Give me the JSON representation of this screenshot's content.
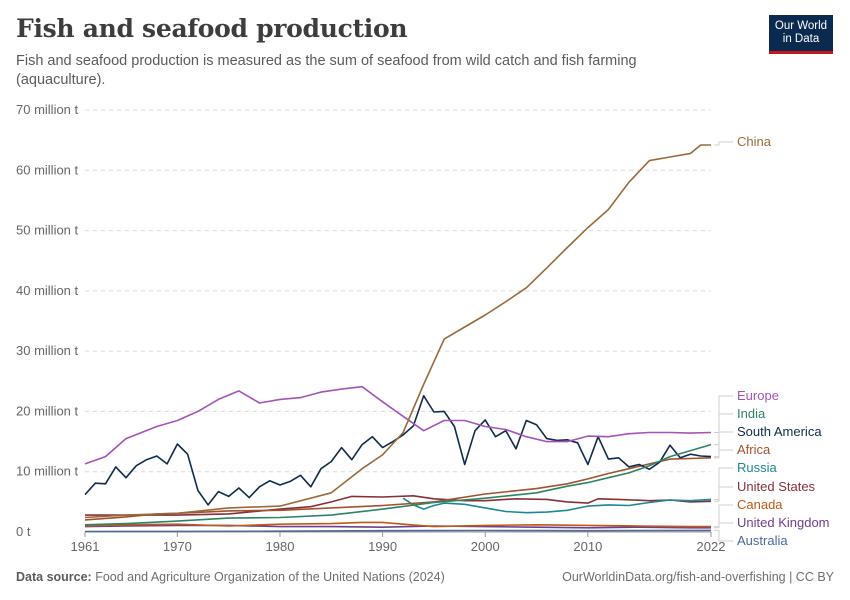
{
  "header": {
    "title": "Fish and seafood production",
    "subtitle": "Fish and seafood production is measured as the sum of seafood from wild catch and fish farming (aquaculture).",
    "logo_line1": "Our World",
    "logo_line2": "in Data"
  },
  "footer": {
    "source_label": "Data source:",
    "source_text": "Food and Agriculture Organization of the United Nations (2024)",
    "link": "OurWorldinData.org/fish-and-overfishing | CC BY"
  },
  "chart_data": {
    "type": "line",
    "title": "Fish and seafood production",
    "xlabel": "",
    "ylabel": "",
    "xlim": [
      1961,
      2022
    ],
    "ylim": [
      0,
      70
    ],
    "y_unit": "million t",
    "grid": true,
    "x_ticks": [
      {
        "value": 1961,
        "label": "1961"
      },
      {
        "value": 1970,
        "label": "1970"
      },
      {
        "value": 1980,
        "label": "1980"
      },
      {
        "value": 1990,
        "label": "1990"
      },
      {
        "value": 2000,
        "label": "2000"
      },
      {
        "value": 2010,
        "label": "2010"
      },
      {
        "value": 2022,
        "label": "2022"
      }
    ],
    "y_ticks": [
      {
        "value": 0,
        "label": "0 t"
      },
      {
        "value": 10,
        "label": "10 million t"
      },
      {
        "value": 20,
        "label": "20 million t"
      },
      {
        "value": 30,
        "label": "30 million t"
      },
      {
        "value": 40,
        "label": "40 million t"
      },
      {
        "value": 50,
        "label": "50 million t"
      },
      {
        "value": 60,
        "label": "60 million t"
      },
      {
        "value": 70,
        "label": "70 million t"
      }
    ],
    "series": [
      {
        "name": "China",
        "color": "#9a6a3a",
        "points": [
          [
            1961,
            2.4
          ],
          [
            1965,
            2.8
          ],
          [
            1970,
            3.1
          ],
          [
            1975,
            4.0
          ],
          [
            1980,
            4.3
          ],
          [
            1985,
            6.5
          ],
          [
            1988,
            10.5
          ],
          [
            1990,
            12.8
          ],
          [
            1992,
            16.5
          ],
          [
            1994,
            24.5
          ],
          [
            1996,
            32.0
          ],
          [
            1998,
            34.0
          ],
          [
            2000,
            36.0
          ],
          [
            2002,
            38.2
          ],
          [
            2004,
            40.5
          ],
          [
            2006,
            43.8
          ],
          [
            2008,
            47.2
          ],
          [
            2010,
            50.5
          ],
          [
            2012,
            53.5
          ],
          [
            2014,
            58.0
          ],
          [
            2016,
            61.6
          ],
          [
            2018,
            62.2
          ],
          [
            2020,
            62.8
          ],
          [
            2021,
            64.2
          ],
          [
            2022,
            64.2
          ]
        ]
      },
      {
        "name": "Europe",
        "color": "#a652ba",
        "points": [
          [
            1961,
            11.3
          ],
          [
            1963,
            12.5
          ],
          [
            1965,
            15.5
          ],
          [
            1968,
            17.5
          ],
          [
            1970,
            18.5
          ],
          [
            1972,
            20.0
          ],
          [
            1974,
            22.0
          ],
          [
            1976,
            23.4
          ],
          [
            1978,
            21.4
          ],
          [
            1980,
            22.0
          ],
          [
            1982,
            22.3
          ],
          [
            1984,
            23.2
          ],
          [
            1986,
            23.7
          ],
          [
            1988,
            24.1
          ],
          [
            1990,
            21.6
          ],
          [
            1992,
            19.2
          ],
          [
            1994,
            16.8
          ],
          [
            1996,
            18.5
          ],
          [
            1998,
            18.5
          ],
          [
            2000,
            17.5
          ],
          [
            2002,
            17.0
          ],
          [
            2004,
            15.8
          ],
          [
            2006,
            15.0
          ],
          [
            2008,
            15.0
          ],
          [
            2010,
            15.9
          ],
          [
            2012,
            15.8
          ],
          [
            2014,
            16.3
          ],
          [
            2016,
            16.5
          ],
          [
            2018,
            16.5
          ],
          [
            2020,
            16.4
          ],
          [
            2022,
            16.5
          ]
        ]
      },
      {
        "name": "India",
        "color": "#2c8465",
        "points": [
          [
            1961,
            1.2
          ],
          [
            1965,
            1.4
          ],
          [
            1970,
            1.8
          ],
          [
            1975,
            2.3
          ],
          [
            1980,
            2.4
          ],
          [
            1985,
            2.8
          ],
          [
            1990,
            3.8
          ],
          [
            1995,
            4.9
          ],
          [
            2000,
            5.6
          ],
          [
            2005,
            6.5
          ],
          [
            2008,
            7.6
          ],
          [
            2010,
            8.2
          ],
          [
            2012,
            9.0
          ],
          [
            2014,
            9.8
          ],
          [
            2016,
            11.0
          ],
          [
            2018,
            12.5
          ],
          [
            2020,
            13.5
          ],
          [
            2022,
            14.5
          ]
        ]
      },
      {
        "name": "South America",
        "color": "#102b4e",
        "points": [
          [
            1961,
            6.2
          ],
          [
            1962,
            8.1
          ],
          [
            1963,
            8.0
          ],
          [
            1964,
            10.8
          ],
          [
            1965,
            9.0
          ],
          [
            1966,
            11.0
          ],
          [
            1967,
            12.0
          ],
          [
            1968,
            12.6
          ],
          [
            1969,
            11.3
          ],
          [
            1970,
            14.6
          ],
          [
            1971,
            12.9
          ],
          [
            1972,
            6.9
          ],
          [
            1973,
            4.5
          ],
          [
            1974,
            6.7
          ],
          [
            1975,
            5.9
          ],
          [
            1976,
            7.3
          ],
          [
            1977,
            5.7
          ],
          [
            1978,
            7.5
          ],
          [
            1979,
            8.5
          ],
          [
            1980,
            7.8
          ],
          [
            1981,
            8.4
          ],
          [
            1982,
            9.4
          ],
          [
            1983,
            7.5
          ],
          [
            1984,
            10.5
          ],
          [
            1985,
            11.7
          ],
          [
            1986,
            14.0
          ],
          [
            1987,
            12.0
          ],
          [
            1988,
            14.5
          ],
          [
            1989,
            15.8
          ],
          [
            1990,
            14.0
          ],
          [
            1991,
            15.0
          ],
          [
            1992,
            16.1
          ],
          [
            1993,
            17.6
          ],
          [
            1994,
            22.6
          ],
          [
            1995,
            19.9
          ],
          [
            1996,
            20.0
          ],
          [
            1997,
            17.5
          ],
          [
            1998,
            11.2
          ],
          [
            1999,
            16.8
          ],
          [
            2000,
            18.6
          ],
          [
            2001,
            15.8
          ],
          [
            2002,
            16.8
          ],
          [
            2003,
            13.8
          ],
          [
            2004,
            18.5
          ],
          [
            2005,
            17.8
          ],
          [
            2006,
            15.5
          ],
          [
            2007,
            15.2
          ],
          [
            2008,
            15.3
          ],
          [
            2009,
            14.8
          ],
          [
            2010,
            11.2
          ],
          [
            2011,
            15.8
          ],
          [
            2012,
            12.1
          ],
          [
            2013,
            12.3
          ],
          [
            2014,
            10.8
          ],
          [
            2015,
            11.2
          ],
          [
            2016,
            10.4
          ],
          [
            2017,
            11.6
          ],
          [
            2018,
            14.4
          ],
          [
            2019,
            12.3
          ],
          [
            2020,
            12.9
          ],
          [
            2021,
            12.6
          ],
          [
            2022,
            12.5
          ]
        ]
      },
      {
        "name": "Africa",
        "color": "#a2522f",
        "points": [
          [
            1961,
            2.0
          ],
          [
            1965,
            2.5
          ],
          [
            1968,
            3.0
          ],
          [
            1970,
            3.1
          ],
          [
            1975,
            3.5
          ],
          [
            1980,
            3.6
          ],
          [
            1985,
            4.0
          ],
          [
            1990,
            4.4
          ],
          [
            1995,
            5.0
          ],
          [
            2000,
            6.3
          ],
          [
            2005,
            7.2
          ],
          [
            2008,
            8.0
          ],
          [
            2010,
            8.8
          ],
          [
            2012,
            9.7
          ],
          [
            2014,
            10.5
          ],
          [
            2016,
            11.3
          ],
          [
            2018,
            12.1
          ],
          [
            2020,
            12.2
          ],
          [
            2022,
            12.3
          ]
        ]
      },
      {
        "name": "Russia",
        "color": "#1a8a96",
        "points": [
          [
            1992,
            5.6
          ],
          [
            1993,
            4.5
          ],
          [
            1994,
            3.8
          ],
          [
            1995,
            4.4
          ],
          [
            1996,
            4.8
          ],
          [
            1998,
            4.6
          ],
          [
            2000,
            4.0
          ],
          [
            2002,
            3.4
          ],
          [
            2004,
            3.2
          ],
          [
            2006,
            3.3
          ],
          [
            2008,
            3.6
          ],
          [
            2010,
            4.3
          ],
          [
            2012,
            4.5
          ],
          [
            2014,
            4.4
          ],
          [
            2016,
            4.9
          ],
          [
            2018,
            5.3
          ],
          [
            2020,
            5.2
          ],
          [
            2022,
            5.4
          ]
        ]
      },
      {
        "name": "United States",
        "color": "#883039",
        "points": [
          [
            1961,
            2.8
          ],
          [
            1965,
            2.8
          ],
          [
            1970,
            2.8
          ],
          [
            1975,
            3.0
          ],
          [
            1980,
            3.8
          ],
          [
            1983,
            4.2
          ],
          [
            1985,
            5.0
          ],
          [
            1987,
            5.9
          ],
          [
            1990,
            5.8
          ],
          [
            1993,
            6.0
          ],
          [
            1995,
            5.5
          ],
          [
            1998,
            5.2
          ],
          [
            2000,
            5.2
          ],
          [
            2003,
            5.5
          ],
          [
            2006,
            5.4
          ],
          [
            2008,
            5.0
          ],
          [
            2010,
            4.8
          ],
          [
            2011,
            5.5
          ],
          [
            2013,
            5.4
          ],
          [
            2016,
            5.2
          ],
          [
            2018,
            5.3
          ],
          [
            2020,
            5.0
          ],
          [
            2022,
            5.1
          ]
        ]
      },
      {
        "name": "Canada",
        "color": "#c05917",
        "points": [
          [
            1961,
            1.0
          ],
          [
            1965,
            1.2
          ],
          [
            1970,
            1.3
          ],
          [
            1975,
            1.0
          ],
          [
            1980,
            1.3
          ],
          [
            1985,
            1.4
          ],
          [
            1988,
            1.6
          ],
          [
            1990,
            1.6
          ],
          [
            1992,
            1.3
          ],
          [
            1995,
            0.9
          ],
          [
            2000,
            1.1
          ],
          [
            2005,
            1.2
          ],
          [
            2010,
            1.1
          ],
          [
            2015,
            1.0
          ],
          [
            2020,
            0.9
          ],
          [
            2022,
            0.9
          ]
        ]
      },
      {
        "name": "United Kingdom",
        "color": "#6d3e91",
        "points": [
          [
            1961,
            0.9
          ],
          [
            1965,
            1.0
          ],
          [
            1970,
            1.1
          ],
          [
            1975,
            1.1
          ],
          [
            1980,
            0.9
          ],
          [
            1985,
            0.9
          ],
          [
            1990,
            0.8
          ],
          [
            1995,
            1.0
          ],
          [
            2000,
            0.9
          ],
          [
            2005,
            0.8
          ],
          [
            2010,
            0.7
          ],
          [
            2015,
            0.8
          ],
          [
            2020,
            0.7
          ],
          [
            2022,
            0.7
          ]
        ]
      },
      {
        "name": "Australia",
        "color": "#4c6a9c",
        "points": [
          [
            1961,
            0.08
          ],
          [
            1970,
            0.1
          ],
          [
            1980,
            0.14
          ],
          [
            1990,
            0.22
          ],
          [
            1995,
            0.24
          ],
          [
            2000,
            0.25
          ],
          [
            2005,
            0.24
          ],
          [
            2010,
            0.22
          ],
          [
            2015,
            0.24
          ],
          [
            2022,
            0.27
          ]
        ]
      }
    ]
  }
}
